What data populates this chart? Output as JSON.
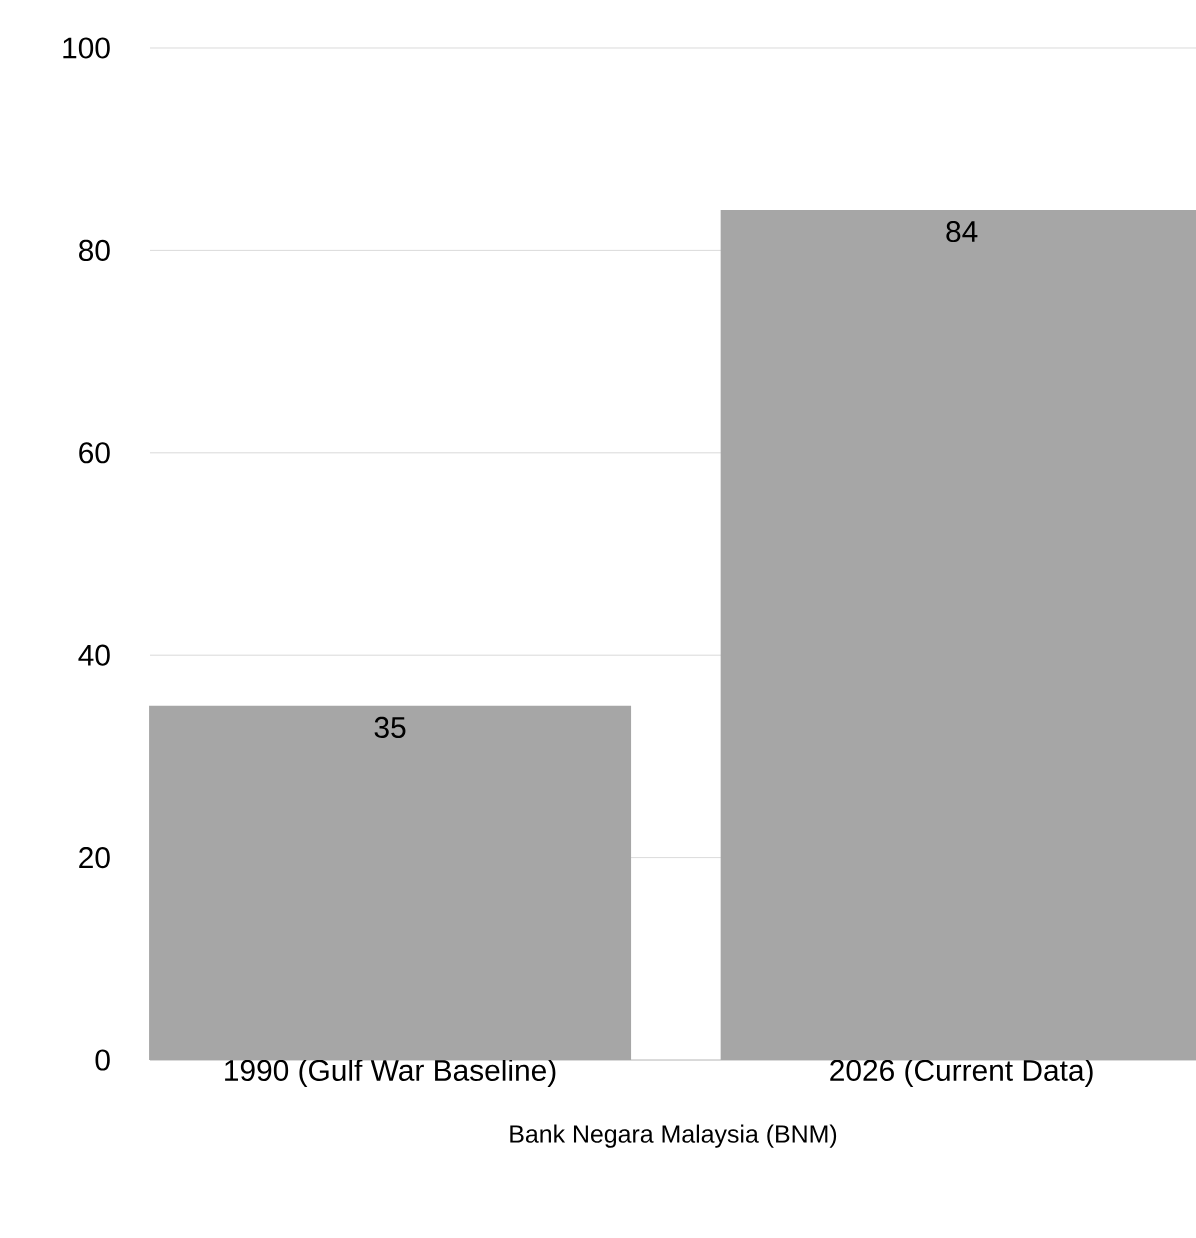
{
  "chart_data": {
    "type": "bar",
    "xlabel": "Bank Negara Malaysia (BNM)",
    "categories": [
      "1990 (Gulf War Baseline)",
      "2026 (Current Data)"
    ],
    "values": [
      35,
      84
    ],
    "value_labels": [
      "35",
      "84"
    ],
    "color": "#a6a6a6",
    "ylim": [
      0,
      100
    ],
    "yticks": [
      0,
      20,
      40,
      60,
      80,
      100
    ],
    "grid": "y"
  }
}
